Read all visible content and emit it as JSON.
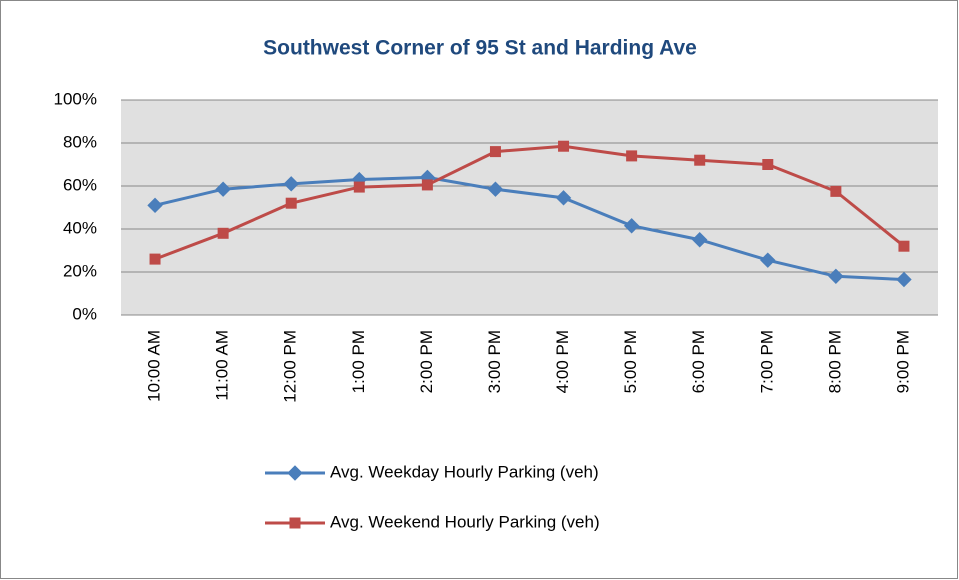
{
  "chart_data": {
    "type": "line",
    "title": "Southwest Corner  of 95 St and Harding Ave",
    "categories": [
      "10:00 AM",
      "11:00 AM",
      "12:00 PM",
      "1:00 PM",
      "2:00 PM",
      "3:00 PM",
      "4:00 PM",
      "5:00 PM",
      "6:00 PM",
      "7:00 PM",
      "8:00 PM",
      "9:00 PM"
    ],
    "series": [
      {
        "name": "Avg. Weekday Hourly Parking (veh)",
        "color": "#4a7ebb",
        "marker": "diamond",
        "values": [
          51,
          58.5,
          61,
          63,
          64,
          58.5,
          54.5,
          41.5,
          35,
          25.5,
          18,
          16.5
        ]
      },
      {
        "name": "Avg. Weekend Hourly Parking (veh)",
        "color": "#be4b48",
        "marker": "square",
        "values": [
          26,
          38,
          52,
          59.5,
          60.5,
          76,
          78.5,
          74,
          72,
          70,
          57.5,
          32
        ]
      }
    ],
    "ylim": [
      0,
      100
    ],
    "yticks": [
      {
        "value": 0,
        "label": "0%"
      },
      {
        "value": 20,
        "label": "20%"
      },
      {
        "value": 40,
        "label": "40%"
      },
      {
        "value": 60,
        "label": "60%"
      },
      {
        "value": 80,
        "label": "80%"
      },
      {
        "value": 100,
        "label": "100%"
      }
    ],
    "grid": true
  }
}
